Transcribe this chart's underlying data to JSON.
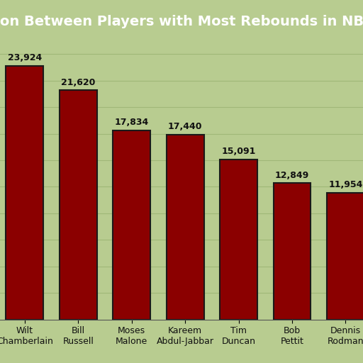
{
  "title": "Comparison Between Players with Most Rebounds in NBA History",
  "players": [
    "Wilt\nChamberlain",
    "Bill\nRussell",
    "Moses\nMalone",
    "Kareem\nAbdul-Jabbar",
    "Tim\nDuncan",
    "Bob\nPettit",
    "Dennis\nRodman"
  ],
  "rebounds": [
    23924,
    21620,
    17834,
    17440,
    15091,
    12849,
    11954
  ],
  "bar_color": "#8B0000",
  "bar_edgecolor": "#1a1a1a",
  "background_color": "#b8cc90",
  "title_bg_color": "#1e3a1e",
  "title_text_color": "#ffffff",
  "ylim": [
    0,
    26000
  ],
  "yticks": [
    2500,
    5000,
    7500,
    10000,
    12500,
    15000,
    17500,
    20000,
    22500,
    25000
  ],
  "grid_color": "#a0b878",
  "bar_label_color": "#111111",
  "title_fontsize": 14,
  "tick_fontsize": 9,
  "bar_label_fontsize": 9
}
